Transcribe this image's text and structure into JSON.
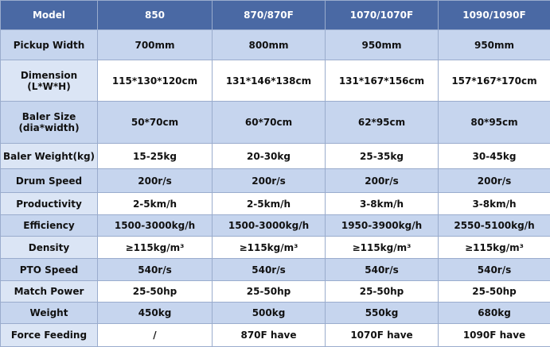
{
  "table": {
    "header": [
      "Model",
      "850",
      "870/870F",
      "1070/1070F",
      "1090/1090F"
    ],
    "rows": [
      [
        "Pickup Width",
        "700mm",
        "800mm",
        "950mm",
        "950mm"
      ],
      [
        "Dimension\n(L*W*H)",
        "115*130*120cm",
        "131*146*138cm",
        "131*167*156cm",
        "157*167*170cm"
      ],
      [
        "Baler Size\n(dia*width)",
        "50*70cm",
        "60*70cm",
        "62*95cm",
        "80*95cm"
      ],
      [
        "Baler Weight(kg)",
        "15-25kg",
        "20-30kg",
        "25-35kg",
        "30-45kg"
      ],
      [
        "Drum Speed",
        "200r/s",
        "200r/s",
        "200r/s",
        "200r/s"
      ],
      [
        "Productivity",
        "2-5km/h",
        "2-5km/h",
        "3-8km/h",
        "3-8km/h"
      ],
      [
        "Efficiency",
        "1500-3000kg/h",
        "1500-3000kg/h",
        "1950-3900kg/h",
        "2550-5100kg/h"
      ],
      [
        "Density",
        "≥115kg/m³",
        "≥115kg/m³",
        "≥115kg/m³",
        "≥115kg/m³"
      ],
      [
        "PTO Speed",
        "540r/s",
        "540r/s",
        "540r/s",
        "540r/s"
      ],
      [
        "Match Power",
        "25-50hp",
        "25-50hp",
        "25-50hp",
        "25-50hp"
      ],
      [
        "Weight",
        "450kg",
        "500kg",
        "550kg",
        "680kg"
      ],
      [
        "Force Feeding",
        "/",
        "870F have",
        "1070F have",
        "1090F have"
      ]
    ]
  }
}
